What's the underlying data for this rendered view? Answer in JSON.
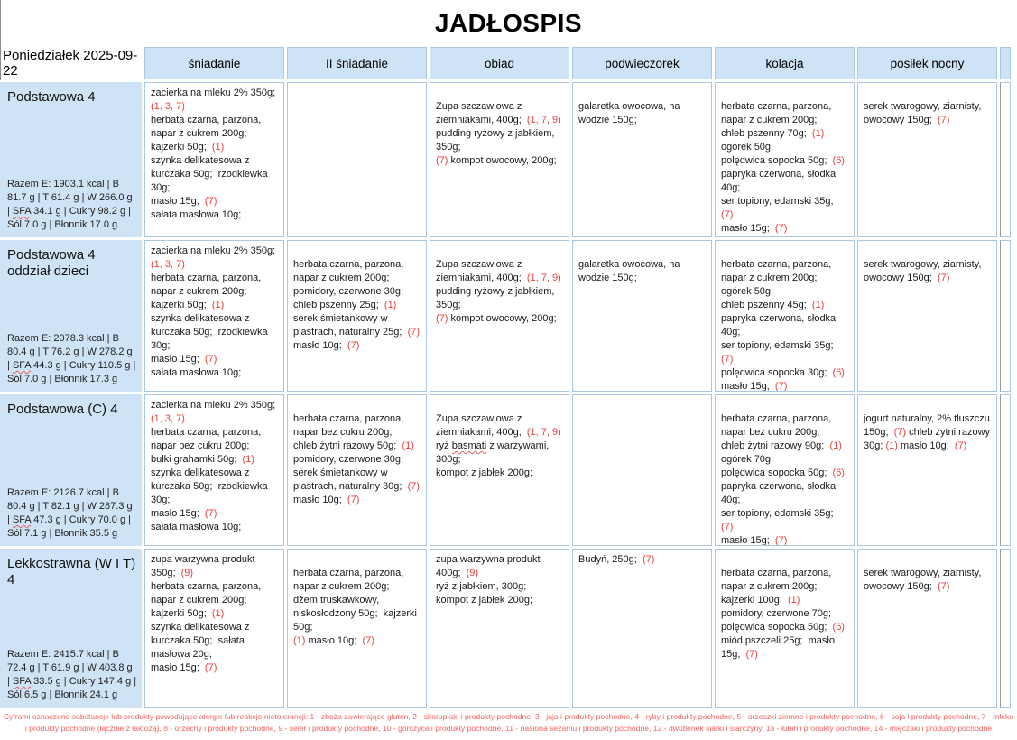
{
  "title": "JADŁOSPIS",
  "header": {
    "date": "Poniedziałek 2025-09-22",
    "meals": [
      "śniadanie",
      "II śniadanie",
      "obiad",
      "podwieczorek",
      "kolacja",
      "posiłek nocny"
    ]
  },
  "colors": {
    "header_fill": "#cfe3f6",
    "cell_border": "#abc8e2",
    "annotation_red": "#e5413e",
    "footer_red": "#f4625f"
  },
  "rows": [
    {
      "name": "Podstawowa 4",
      "nutrition": [
        {
          "t": "Razem E: 1903.1 kcal | B 81.7 g | T 61.4 g | W 266.0 g | "
        },
        {
          "t": "SFA",
          "sq": true
        },
        {
          "t": " 34.1 g | Cukry 98.2 g | Sól 7.0 g | Błonnik 17.0 g"
        }
      ],
      "cells": [
        [
          {
            "t": "zacierka na mleku 2% 350g; "
          },
          {
            "t": "(1, 3, 7)",
            "c": "red"
          },
          {
            "t": "\nherbata czarna, parzona, napar z cukrem 200g;  kajzerki 50g;  "
          },
          {
            "t": "(1)",
            "c": "red"
          },
          {
            "t": "\nszynka delikatesowa z kurczaka 50g;  rzodkiewka 30g;\nmasło 15g;  "
          },
          {
            "t": "(7)",
            "c": "red"
          },
          {
            "t": "\nsałata masłowa 10g;"
          }
        ],
        [],
        [
          {
            "t": "\nZupa szczawiowa z ziemniakami, 400g;  "
          },
          {
            "t": "(1, 7, 9)",
            "c": "red"
          },
          {
            "t": "\npudding ryżowy z jabłkiem, 350g;\n"
          },
          {
            "t": "(7)",
            "c": "red"
          },
          {
            "t": " kompot owocowy, 200g;"
          }
        ],
        [
          {
            "t": "\ngalaretka owocowa, na wodzie 150g;"
          }
        ],
        [
          {
            "t": "\nherbata czarna, parzona, napar z cukrem 200g;\nchleb pszenny 70g;  "
          },
          {
            "t": "(1)",
            "c": "red"
          },
          {
            "t": "\nogórek 50g;\npolędwica sopocka 50g;  "
          },
          {
            "t": "(6)",
            "c": "red"
          },
          {
            "t": "\npapryka czerwona, słodka 40g;\nser topiony, edamski 35g;  "
          },
          {
            "t": "(7)",
            "c": "red"
          },
          {
            "t": "\nmasło 15g;  "
          },
          {
            "t": "(7)",
            "c": "red"
          }
        ],
        [
          {
            "t": "\nserek twarogowy, ziarnisty, owocowy 150g;  "
          },
          {
            "t": "(7)",
            "c": "red"
          }
        ]
      ]
    },
    {
      "name": "Podstawowa 4 oddział dzieci",
      "nutrition": [
        {
          "t": "Razem E: 2078.3 kcal | B 80.4 g | T 76.2 g | W 278.2 g | "
        },
        {
          "t": "SFA",
          "sq": true
        },
        {
          "t": " 44.3 g | Cukry 110.5 g | Sól 7.0 g | Błonnik 17.3 g"
        }
      ],
      "cells": [
        [
          {
            "t": "zacierka na mleku 2% 350g; "
          },
          {
            "t": "(1, 3, 7)",
            "c": "red"
          },
          {
            "t": "\nherbata czarna, parzona, napar z cukrem 200g;  kajzerki 50g;  "
          },
          {
            "t": "(1)",
            "c": "red"
          },
          {
            "t": "\nszynka delikatesowa z kurczaka 50g;  rzodkiewka 30g;\nmasło 15g;  "
          },
          {
            "t": "(7)",
            "c": "red"
          },
          {
            "t": "\nsałata masłowa 10g;"
          }
        ],
        [
          {
            "t": "\nherbata czarna, parzona, napar z cukrem 200g;\npomidory, czerwone 30g;\nchleb pszenny 25g;  "
          },
          {
            "t": "(1)",
            "c": "red"
          },
          {
            "t": "\nserek śmietankowy w plastrach, naturalny 25g;  "
          },
          {
            "t": "(7)",
            "c": "red"
          },
          {
            "t": " masło 10g;  "
          },
          {
            "t": "(7)",
            "c": "red"
          }
        ],
        [
          {
            "t": "\nZupa szczawiowa z ziemniakami, 400g;  "
          },
          {
            "t": "(1, 7, 9)",
            "c": "red"
          },
          {
            "t": "\npudding ryżowy z jabłkiem, 350g;\n"
          },
          {
            "t": "(7)",
            "c": "red"
          },
          {
            "t": " kompot owocowy, 200g;"
          }
        ],
        [
          {
            "t": "\ngalaretka owocowa, na wodzie 150g;"
          }
        ],
        [
          {
            "t": "\nherbata czarna, parzona, napar z cukrem 200g;  ogórek 50g;\nchleb pszenny 45g;  "
          },
          {
            "t": "(1)",
            "c": "red"
          },
          {
            "t": "\npapryka czerwona, słodka 40g;\nser topiony, edamski 35g;  "
          },
          {
            "t": "(7)",
            "c": "red"
          },
          {
            "t": "\npolędwica sopocka 30g;  "
          },
          {
            "t": "(6)",
            "c": "red"
          },
          {
            "t": "\nmasło 15g;  "
          },
          {
            "t": "(7)",
            "c": "red"
          }
        ],
        [
          {
            "t": "\nserek twarogowy, ziarnisty, owocowy 150g;  "
          },
          {
            "t": "(7)",
            "c": "red"
          }
        ]
      ]
    },
    {
      "name": "Podstawowa (C) 4",
      "nutrition": [
        {
          "t": "Razem E: 2126.7 kcal | B 80.4 g | T 82.1 g | W 287.3 g | "
        },
        {
          "t": "SFA",
          "sq": true
        },
        {
          "t": " 47.3 g | Cukry 70.0 g | Sól 7.1 g | Błonnik 35.5 g"
        }
      ],
      "cells": [
        [
          {
            "t": "zacierka na mleku 2% 350g; "
          },
          {
            "t": "(1, 3, 7)",
            "c": "red"
          },
          {
            "t": "\nherbata czarna, parzona, napar bez cukru 200g;\nbułki grahamki 50g;  "
          },
          {
            "t": "(1)",
            "c": "red"
          },
          {
            "t": "\nszynka delikatesowa z kurczaka 50g;  rzodkiewka 30g;\nmasło 15g;  "
          },
          {
            "t": "(7)",
            "c": "red"
          },
          {
            "t": "\nsałata masłowa 10g;"
          }
        ],
        [
          {
            "t": "\nherbata czarna, parzona, napar bez cukru 200g;\nchleb żytni razowy 50g;  "
          },
          {
            "t": "(1)",
            "c": "red"
          },
          {
            "t": "\npomidory, czerwone 30g;\nserek śmietankowy w plastrach, naturalny 30g;  "
          },
          {
            "t": "(7)",
            "c": "red"
          },
          {
            "t": " masło 10g;  "
          },
          {
            "t": "(7)",
            "c": "red"
          }
        ],
        [
          {
            "t": "\nZupa szczawiowa z ziemniakami, 400g;  "
          },
          {
            "t": "(1, 7, 9)",
            "c": "red"
          },
          {
            "t": "\nryż "
          },
          {
            "t": "basmati",
            "sq": true
          },
          {
            "t": " z warzywami, 300g;\nkompot z jabłek 200g;"
          }
        ],
        [],
        [
          {
            "t": "\nherbata czarna, parzona, napar bez cukru 200g;\nchleb żytni razowy 90g;  "
          },
          {
            "t": "(1)",
            "c": "red"
          },
          {
            "t": "\nogórek 70g;\npolędwica sopocka 50g;  "
          },
          {
            "t": "(6)",
            "c": "red"
          },
          {
            "t": "\npapryka czerwona, słodka 40g;\nser topiony, edamski 35g;  "
          },
          {
            "t": "(7)",
            "c": "red"
          },
          {
            "t": "\nmasło 15g;  "
          },
          {
            "t": "(7)",
            "c": "red"
          }
        ],
        [
          {
            "t": "\njogurt naturalny, 2% tłuszczu 150g;  "
          },
          {
            "t": "(7)",
            "c": "red"
          },
          {
            "t": " chleb żytni razowy 30g; "
          },
          {
            "t": "(1)",
            "c": "red"
          },
          {
            "t": " masło 10g;  "
          },
          {
            "t": "(7)",
            "c": "red"
          }
        ]
      ]
    },
    {
      "name": "Lekkostrawna (W I T) 4",
      "nutrition": [
        {
          "t": "Razem E: 2415.7 kcal | B 72.4 g | T 61.9 g | W 403.8 g | "
        },
        {
          "t": "SFA",
          "sq": true
        },
        {
          "t": " 33.5 g | Cukry 147.4 g | Sól 6.5 g | Błonnik 24.1 g"
        }
      ],
      "cells": [
        [
          {
            "t": "zupa warzywna produkt 350g;  "
          },
          {
            "t": "(9)",
            "c": "red"
          },
          {
            "t": "\nherbata czarna, parzona, napar z cukrem 200g;  kajzerki 50g;  "
          },
          {
            "t": "(1)",
            "c": "red"
          },
          {
            "t": "\nszynka delikatesowa z kurczaka 50g;  sałata masłowa 20g;\nmasło 15g;  "
          },
          {
            "t": "(7)",
            "c": "red"
          }
        ],
        [
          {
            "t": "\nherbata czarna, parzona, napar z cukrem 200g;\ndżem truskawkowy, niskosłodzony 50g;  kajzerki 50g;\n"
          },
          {
            "t": "(1)",
            "c": "red"
          },
          {
            "t": " masło 10g;  "
          },
          {
            "t": "(7)",
            "c": "red"
          }
        ],
        [
          {
            "t": "zupa warzywna produkt 400g;  "
          },
          {
            "t": "(9)",
            "c": "red"
          },
          {
            "t": "\nryż z jabłkiem, 300g;\nkompot z jabłek 200g;"
          }
        ],
        [
          {
            "t": "Budyń, 250g;  "
          },
          {
            "t": "(7)",
            "c": "red"
          }
        ],
        [
          {
            "t": "\nherbata czarna, parzona, napar z cukrem 200g;  kajzerki 100g;  "
          },
          {
            "t": "(1)",
            "c": "red"
          },
          {
            "t": "\npomidory, czerwone 70g;\npolędwica sopocka 50g;  "
          },
          {
            "t": "(6)",
            "c": "red"
          },
          {
            "t": "\nmiód pszczeli 25g;  masło 15g;  "
          },
          {
            "t": "(7)",
            "c": "red"
          }
        ],
        [
          {
            "t": "\nserek twarogowy, ziarnisty, owocowy 150g;  "
          },
          {
            "t": "(7)",
            "c": "red"
          }
        ]
      ]
    }
  ],
  "footer": "Cyframi oznaczono substancje lub produkty powodujące alergie lub reakcje nietolerancji: 1 - zboża zawierające gluten, 2 - skorupiaki i produkty pochodne, 3 - jaja i produkty pochodne, 4 - ryby i produkty pochodne, 5 - orzeszki ziemne i produkty pochodne, 6 - soja i produkty pochodne, 7 - mleko i produkty pochodne (łącznie z laktozą), 8 - orzechy i produkty pochodne, 9 - seler i produkty pochodne, 10 - gorczyca i produkty pochodne, 11 - nasiona sezamu i produkty pochodne, 12 - dwutlenek siarki i siarczyny, 13 - łubin i produkty pochodne, 14 - mięczaki i produkty pochodne"
}
